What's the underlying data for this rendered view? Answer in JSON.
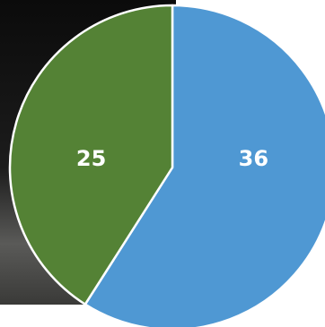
{
  "chart_data": {
    "type": "pie",
    "values": [
      36,
      25
    ],
    "colors": [
      "#4f98d3",
      "#548235"
    ]
  }
}
